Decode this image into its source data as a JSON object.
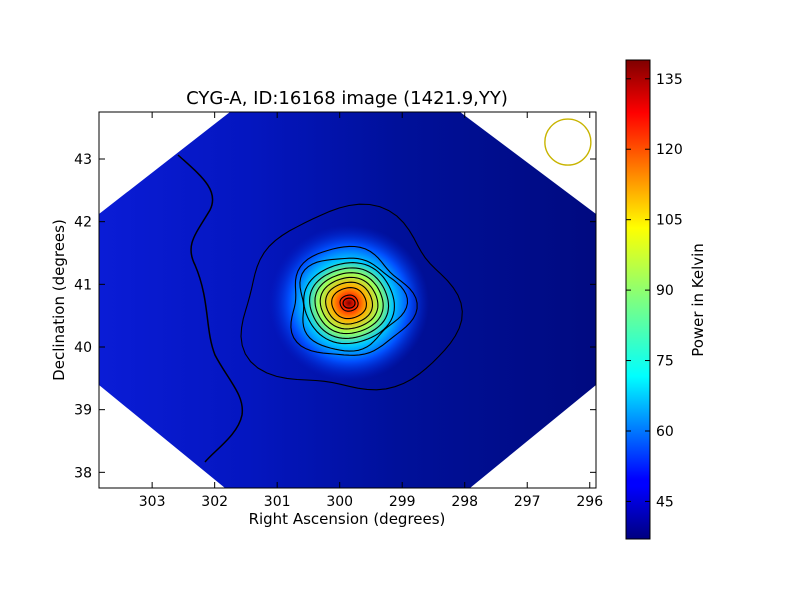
{
  "chart_data": {
    "type": "heatmap",
    "title": "CYG-A, ID:16168 image (1421.9,YY)",
    "xlabel": "Right Ascension (degrees)",
    "ylabel": "Declination (degrees)",
    "xlim": [
      303.85,
      295.9
    ],
    "ylim": [
      37.75,
      43.75
    ],
    "x_ticks": [
      303,
      302,
      301,
      300,
      299,
      298,
      297,
      296
    ],
    "x_tick_labels": [
      "303",
      "302",
      "301",
      "300",
      "299",
      "298",
      "297",
      "296"
    ],
    "y_ticks": [
      38,
      39,
      40,
      41,
      42,
      43
    ],
    "y_tick_labels": [
      "38",
      "39",
      "40",
      "41",
      "42",
      "43"
    ],
    "colorbar": {
      "label": "Power in Kelvin",
      "range": [
        37,
        139
      ],
      "ticks": [
        45,
        60,
        75,
        90,
        105,
        120,
        135
      ],
      "tick_labels": [
        "45",
        "60",
        "75",
        "90",
        "105",
        "120",
        "135"
      ],
      "colormap": "jet"
    },
    "source": {
      "ra": 299.85,
      "dec": 40.7,
      "peak_kelvin": 139,
      "background_kelvin": 40
    },
    "contour_levels": [
      45,
      55,
      65,
      75,
      85,
      95,
      105,
      115,
      125,
      135
    ],
    "beam_marker": {
      "ra": 296.35,
      "dec": 43.27,
      "color": "#c8b400"
    },
    "grid": false
  },
  "colors": {
    "background": "#ffffff",
    "contour": "#000000",
    "axes": "#000000"
  }
}
